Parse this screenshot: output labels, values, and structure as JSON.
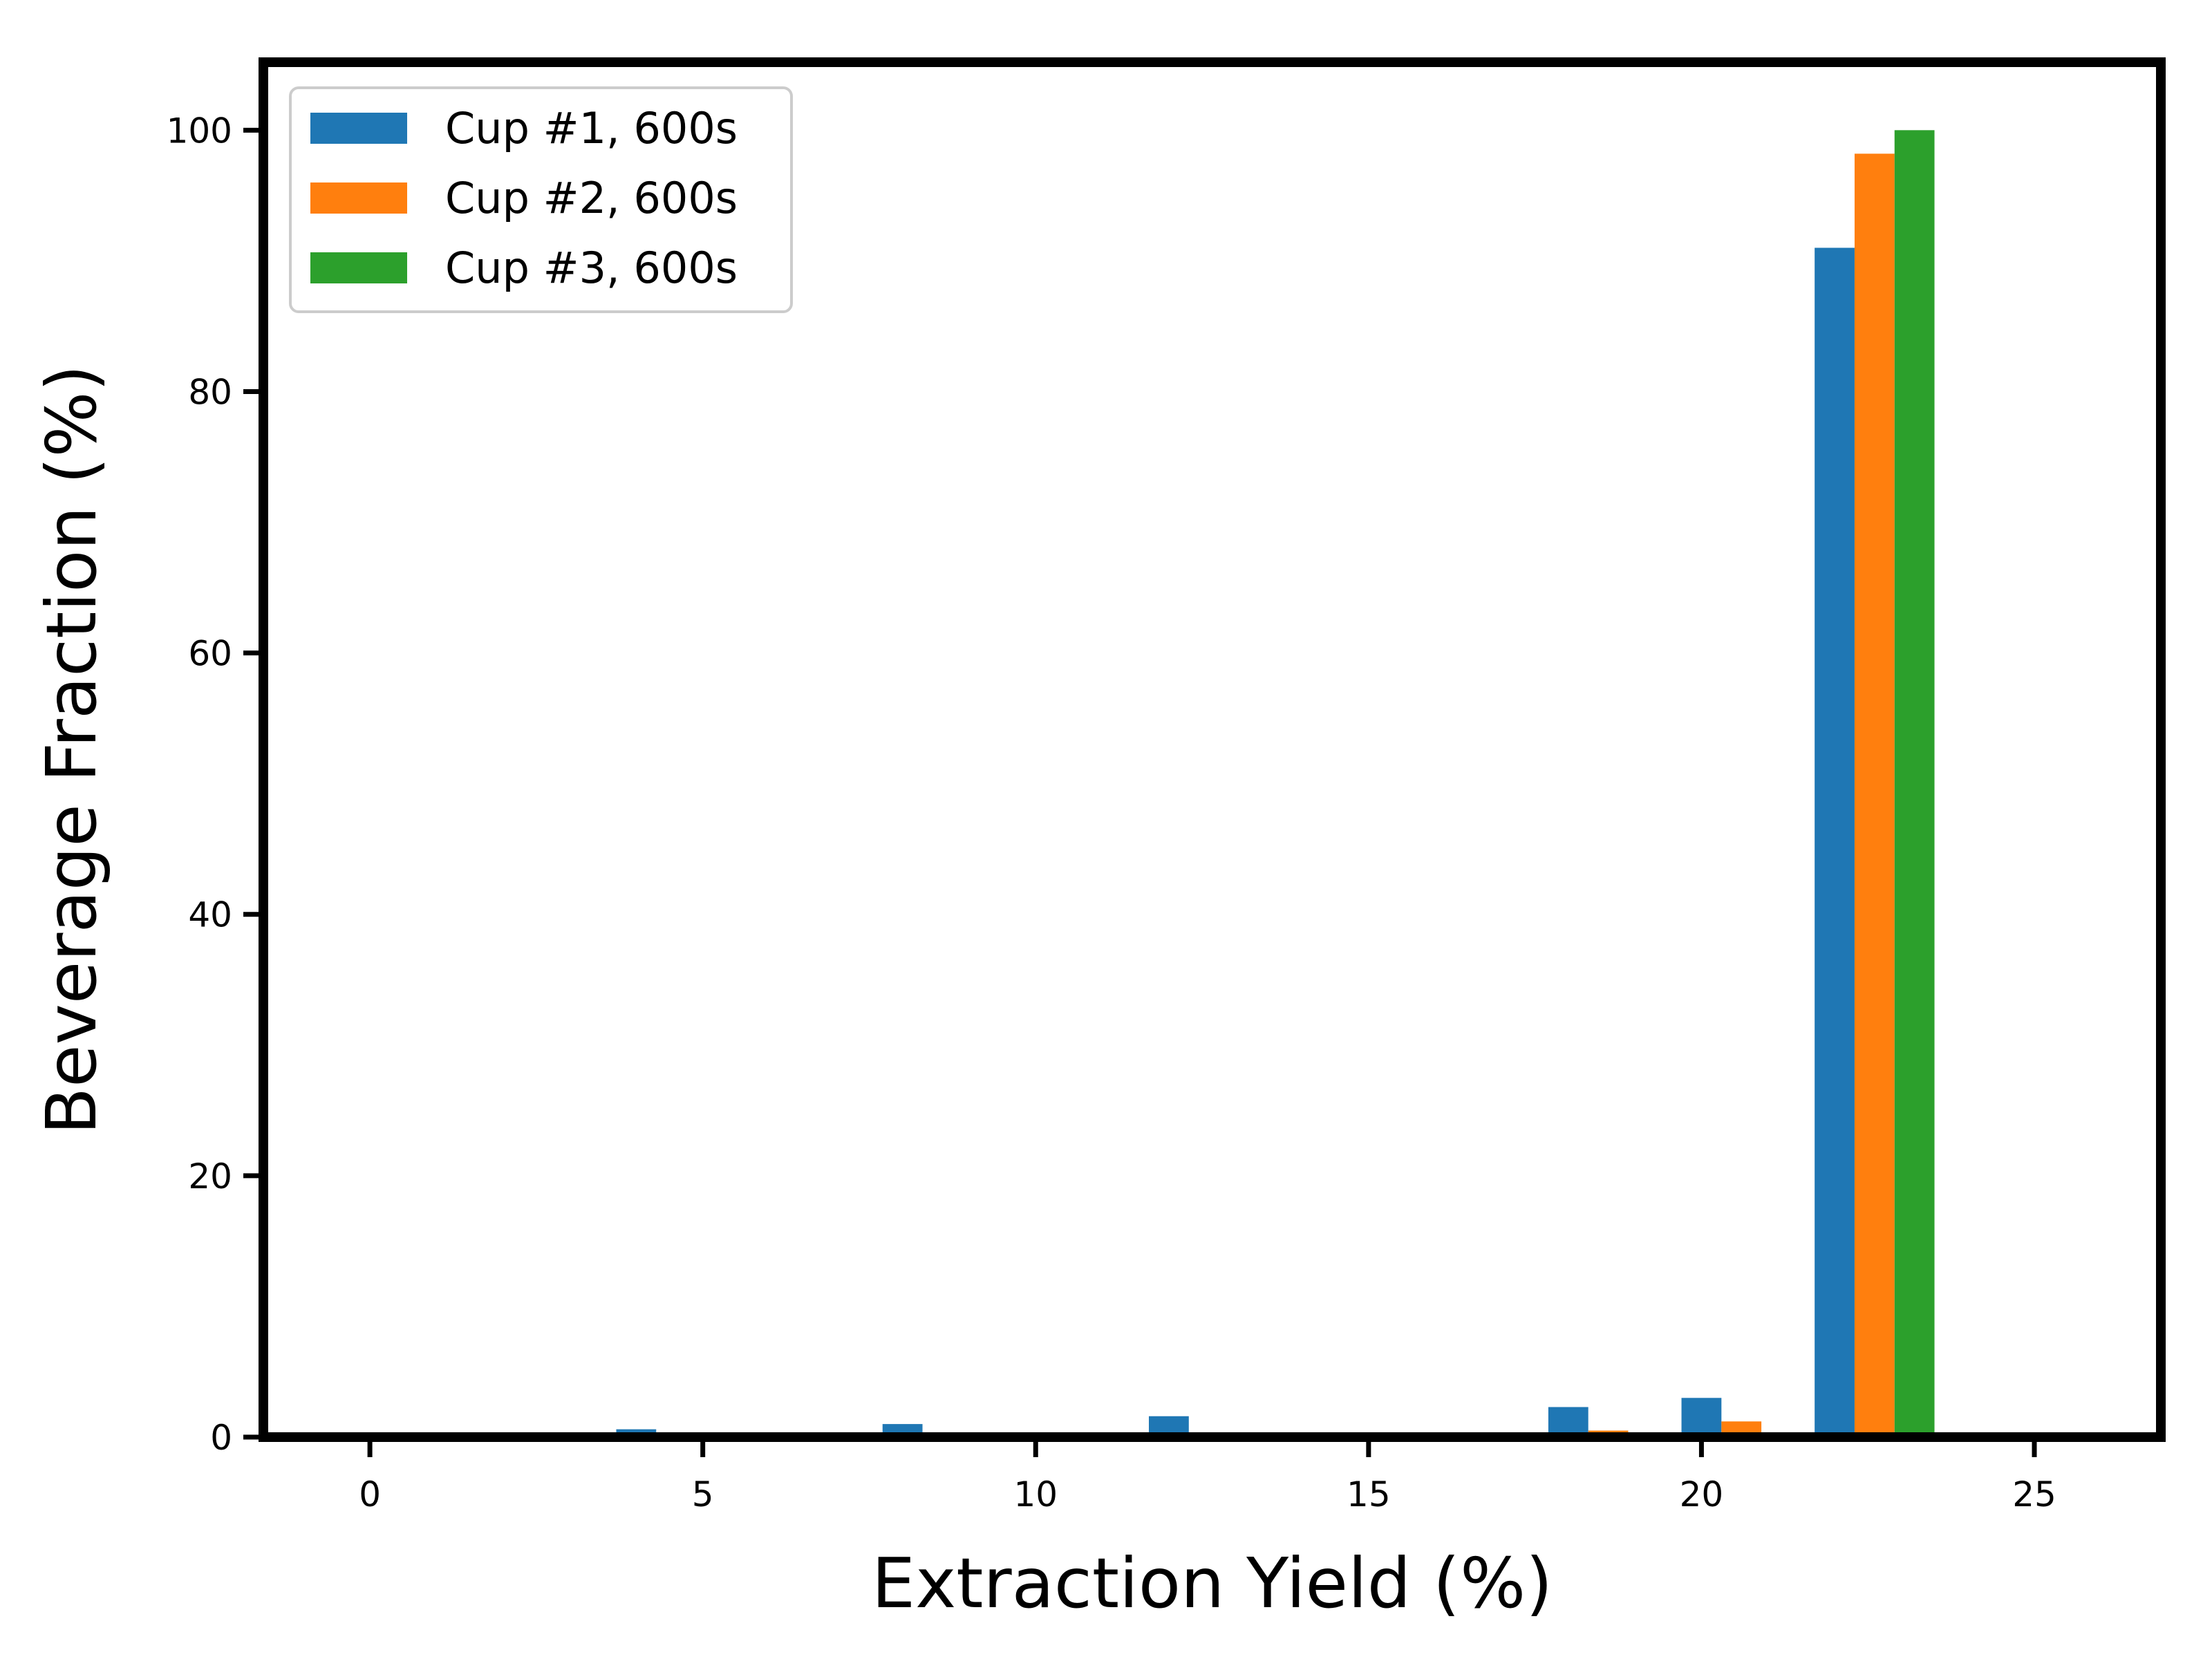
{
  "chart_data": {
    "type": "bar",
    "title": "",
    "xlabel": "Extraction Yield (%)",
    "ylabel": "Beverage Fraction (%)",
    "xlim": [
      -1.6,
      26.9
    ],
    "ylim": [
      0,
      105.2
    ],
    "xticks": [
      0,
      5,
      10,
      15,
      20,
      25
    ],
    "yticks": [
      0,
      20,
      40,
      60,
      80,
      100
    ],
    "grid": false,
    "legend_placement": "top-left",
    "bar_width": 0.6,
    "series": [
      {
        "name": "Cup #1, 600s",
        "color": "#1f77b4",
        "x": [
          4,
          8,
          12,
          18,
          20,
          22
        ],
        "values": [
          0.6,
          1.0,
          1.6,
          2.3,
          3.0,
          91.0
        ]
      },
      {
        "name": "Cup #2, 600s",
        "color": "#ff7f0e",
        "x": [
          18.6,
          20.6,
          22.6
        ],
        "values": [
          0.5,
          1.2,
          98.2
        ]
      },
      {
        "name": "Cup #3, 600s",
        "color": "#2ca02c",
        "x": [
          23.2
        ],
        "values": [
          100.0
        ]
      }
    ]
  }
}
